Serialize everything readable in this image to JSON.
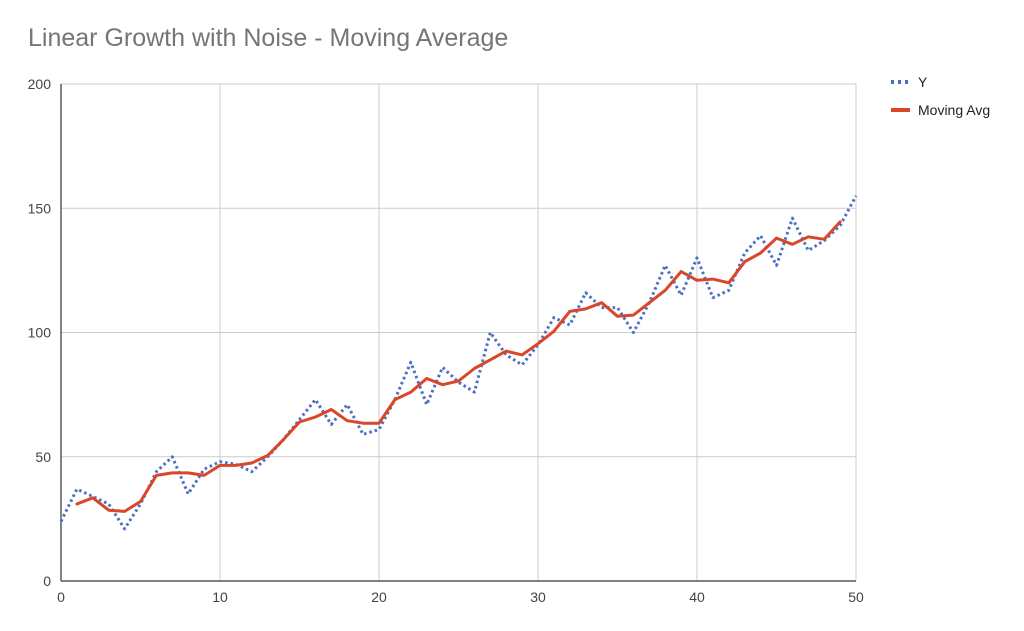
{
  "chart_data": {
    "type": "line",
    "title": "Linear Growth with Noise - Moving Average",
    "xlabel": "",
    "ylabel": "",
    "xlim": [
      0,
      50
    ],
    "ylim": [
      0,
      200
    ],
    "x_ticks": [
      "0",
      "10",
      "20",
      "30",
      "40",
      "50"
    ],
    "y_ticks": [
      "0",
      "50",
      "100",
      "150",
      "200"
    ],
    "grid": true,
    "legend_position": "right",
    "series": [
      {
        "name": "Y",
        "color": "#4a6fc2",
        "style": "dotted",
        "x": [
          0,
          1,
          2,
          3,
          4,
          5,
          6,
          7,
          8,
          9,
          10,
          11,
          12,
          13,
          14,
          15,
          16,
          17,
          18,
          19,
          20,
          21,
          22,
          23,
          24,
          25,
          26,
          27,
          28,
          29,
          30,
          31,
          32,
          33,
          34,
          35,
          36,
          37,
          38,
          39,
          40,
          41,
          42,
          43,
          44,
          45,
          46,
          47,
          48,
          49,
          50
        ],
        "values": [
          24,
          37,
          34,
          31,
          21,
          31,
          44,
          50,
          35,
          45,
          48,
          47,
          44,
          50,
          57,
          65,
          73,
          63,
          71,
          59,
          61,
          73,
          88,
          71,
          86,
          80,
          76,
          100,
          91,
          87,
          95,
          106,
          103,
          116,
          110,
          110,
          100,
          112,
          127,
          115,
          130,
          114,
          117,
          132,
          139,
          127,
          146,
          133,
          137,
          143,
          155
        ]
      },
      {
        "name": "Moving Avg",
        "color": "#d9462a",
        "style": "solid",
        "x": [
          1,
          2,
          3,
          4,
          5,
          6,
          7,
          8,
          9,
          10,
          11,
          12,
          13,
          14,
          15,
          16,
          17,
          18,
          19,
          20,
          21,
          22,
          23,
          24,
          25,
          26,
          27,
          28,
          29,
          30,
          31,
          32,
          33,
          34,
          35,
          36,
          37,
          38,
          39,
          40,
          41,
          42,
          43,
          44,
          45,
          46,
          47,
          48,
          49
        ],
        "values": [
          31,
          33.5,
          28.5,
          28,
          32,
          42.5,
          43.5,
          43.5,
          42.5,
          46.5,
          46.5,
          47.5,
          50.5,
          57,
          64,
          66,
          69,
          64.5,
          63.5,
          63.5,
          73,
          76,
          81.5,
          79,
          80.5,
          85.5,
          89,
          92.5,
          91,
          95.5,
          100.5,
          108.5,
          109.5,
          112,
          106.5,
          107,
          112,
          117,
          124.5,
          121,
          121.5,
          120,
          128.5,
          132,
          138,
          135.5,
          138.5,
          137.5,
          144.5
        ]
      }
    ]
  }
}
